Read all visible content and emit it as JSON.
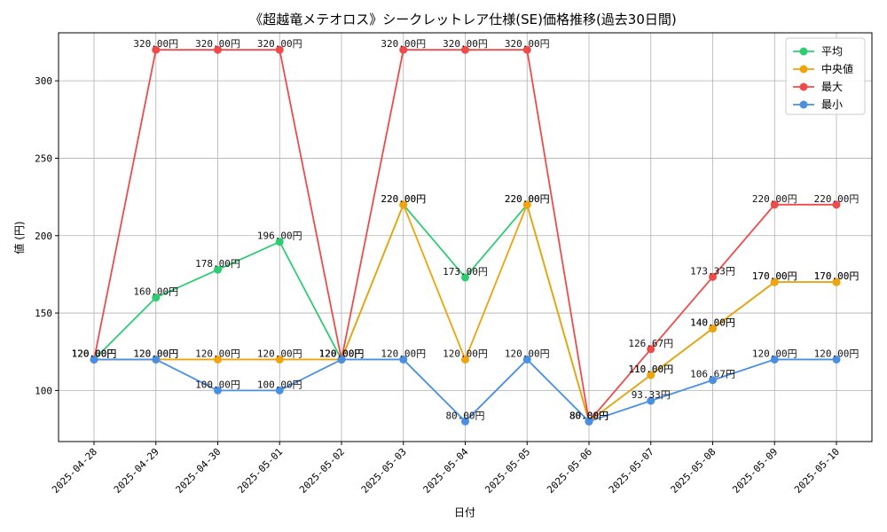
{
  "chart_data": {
    "type": "line",
    "title": "《超越竜メテオロス》シークレットレア仕様(SE)価格推移(過去30日間)",
    "xlabel": "日付",
    "ylabel": "値 (円)",
    "value_suffix": "円",
    "ylim": [
      67,
      331
    ],
    "yticks": [
      100,
      150,
      200,
      250,
      300
    ],
    "grid": true,
    "legend_position": "top-right",
    "x": [
      "2025-04-28",
      "2025-04-29",
      "2025-04-30",
      "2025-05-01",
      "2025-05-02",
      "2025-05-03",
      "2025-05-04",
      "2025-05-05",
      "2025-05-06",
      "2025-05-07",
      "2025-05-08",
      "2025-05-09",
      "2025-05-10"
    ],
    "series": [
      {
        "name": "平均",
        "color": "#2ecc71",
        "values": [
          120,
          160,
          178,
          196,
          120,
          220,
          173,
          220,
          80,
          110,
          140,
          170,
          170
        ]
      },
      {
        "name": "中央値",
        "color": "#f0a30a",
        "values": [
          120,
          120,
          120,
          120,
          120,
          220,
          120,
          220,
          80,
          110,
          140,
          170,
          170
        ]
      },
      {
        "name": "最大",
        "color": "#ef4b4b",
        "values": [
          120,
          320,
          320,
          320,
          120,
          320,
          320,
          320,
          80,
          126.67,
          173.33,
          220,
          220
        ]
      },
      {
        "name": "最小",
        "color": "#4a90e2",
        "values": [
          120,
          120,
          100,
          100,
          120,
          120,
          80,
          120,
          80,
          93.33,
          106.67,
          120,
          120
        ]
      }
    ]
  }
}
